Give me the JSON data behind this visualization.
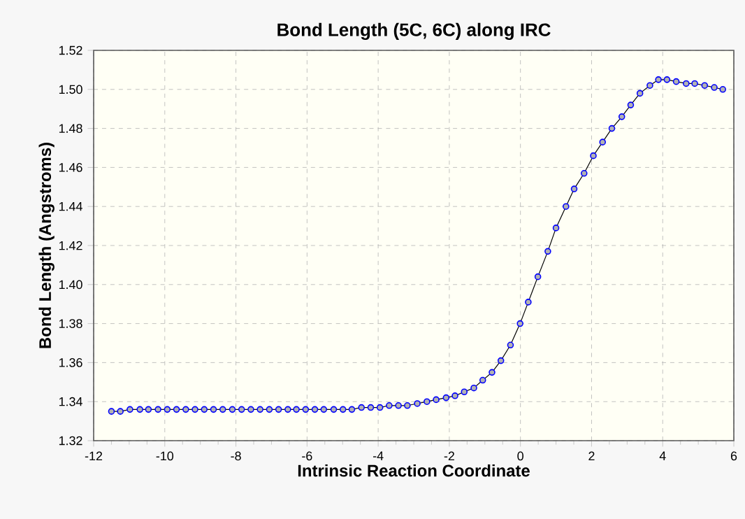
{
  "chart_data": {
    "type": "line",
    "title": "Bond Length (5C, 6C) along IRC",
    "xlabel": "Intrinsic Reaction Coordinate",
    "ylabel": "Bond Length (Angstroms)",
    "xlim": [
      -12,
      6
    ],
    "xticks": [
      -12,
      -10,
      -8,
      -6,
      -4,
      -2,
      0,
      2,
      4,
      6
    ],
    "ylim": [
      1.32,
      1.52
    ],
    "yticks": [
      {
        "value": 1.32,
        "label": "1.32"
      },
      {
        "value": 1.34,
        "label": "1.34"
      },
      {
        "value": 1.36,
        "label": "1.36"
      },
      {
        "value": 1.38,
        "label": "1.38"
      },
      {
        "value": 1.4,
        "label": "1.40"
      },
      {
        "value": 1.42,
        "label": "1.42"
      },
      {
        "value": 1.44,
        "label": "1.44"
      },
      {
        "value": 1.46,
        "label": "1.46"
      },
      {
        "value": 1.48,
        "label": "1.48"
      },
      {
        "value": 1.5,
        "label": "1.50"
      },
      {
        "value": 1.52,
        "label": "1.52"
      }
    ],
    "grid": true,
    "marker": "circle",
    "line_style": "solid",
    "series": [
      {
        "color": "#0000ff",
        "x": [
          -11.5,
          -11.25,
          -10.98,
          -10.7,
          -10.46,
          -10.19,
          -9.93,
          -9.67,
          -9.41,
          -9.15,
          -8.89,
          -8.63,
          -8.37,
          -8.1,
          -7.84,
          -7.58,
          -7.32,
          -7.06,
          -6.8,
          -6.54,
          -6.3,
          -6.04,
          -5.78,
          -5.53,
          -5.25,
          -4.99,
          -4.74,
          -4.47,
          -4.21,
          -3.95,
          -3.69,
          -3.43,
          -3.18,
          -2.9,
          -2.63,
          -2.37,
          -2.09,
          -1.84,
          -1.58,
          -1.31,
          -1.06,
          -0.8,
          -0.55,
          -0.28,
          -0.01,
          0.22,
          0.49,
          0.77,
          1.0,
          1.28,
          1.51,
          1.79,
          2.05,
          2.31,
          2.57,
          2.85,
          3.1,
          3.36,
          3.64,
          3.88,
          4.12,
          4.38,
          4.66,
          4.9,
          5.18,
          5.45,
          5.69
        ],
        "values": [
          1.335,
          1.335,
          1.336,
          1.336,
          1.336,
          1.336,
          1.336,
          1.336,
          1.336,
          1.336,
          1.336,
          1.336,
          1.336,
          1.336,
          1.336,
          1.336,
          1.336,
          1.336,
          1.336,
          1.336,
          1.336,
          1.336,
          1.336,
          1.336,
          1.336,
          1.336,
          1.336,
          1.337,
          1.337,
          1.337,
          1.338,
          1.338,
          1.338,
          1.339,
          1.34,
          1.341,
          1.342,
          1.343,
          1.345,
          1.347,
          1.351,
          1.355,
          1.361,
          1.369,
          1.38,
          1.391,
          1.404,
          1.417,
          1.429,
          1.44,
          1.449,
          1.457,
          1.466,
          1.473,
          1.48,
          1.486,
          1.492,
          1.498,
          1.502,
          1.505,
          1.505,
          1.504,
          1.503,
          1.503,
          1.502,
          1.501,
          1.5
        ]
      }
    ]
  }
}
